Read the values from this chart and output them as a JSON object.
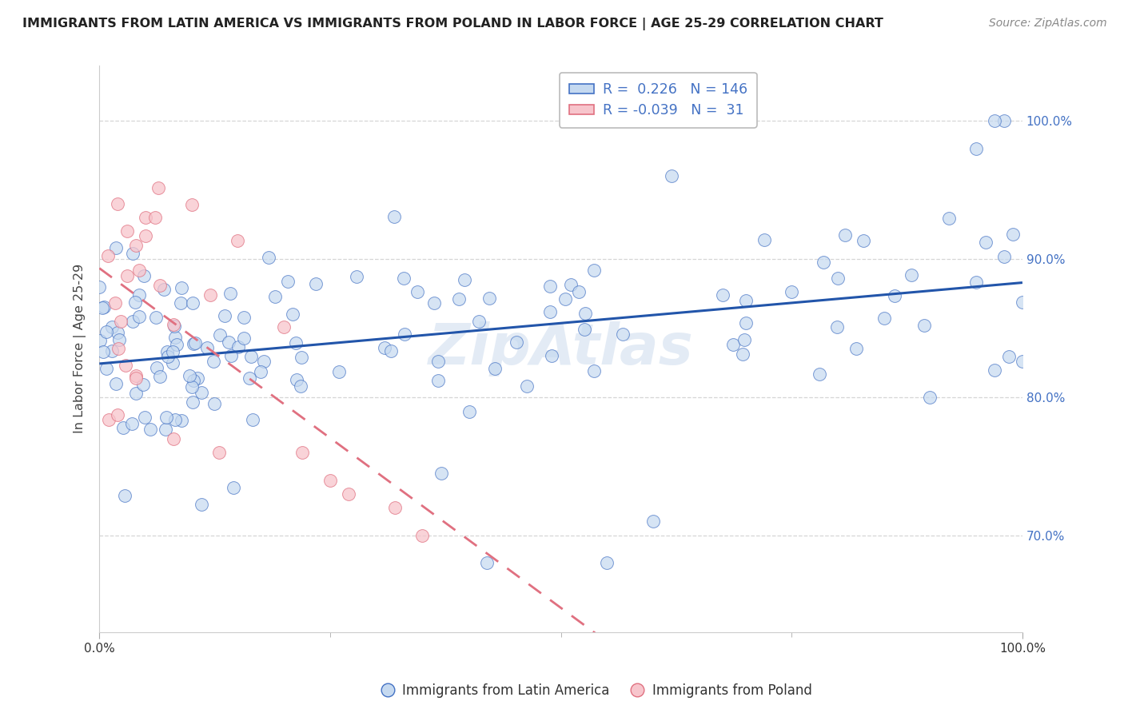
{
  "title": "IMMIGRANTS FROM LATIN AMERICA VS IMMIGRANTS FROM POLAND IN LABOR FORCE | AGE 25-29 CORRELATION CHART",
  "source": "Source: ZipAtlas.com",
  "ylabel": "In Labor Force | Age 25-29",
  "legend_blue_r": "0.226",
  "legend_blue_n": "146",
  "legend_pink_r": "-0.039",
  "legend_pink_n": "31",
  "blue_fill": "#c5d9f0",
  "pink_fill": "#f7c5cc",
  "blue_edge": "#4472c4",
  "pink_edge": "#e07080",
  "blue_line": "#2255aa",
  "pink_line": "#e07080",
  "grid_color": "#cccccc",
  "watermark_color": "#c8d8ec",
  "title_color": "#222222",
  "source_color": "#888888",
  "axis_label_color": "#4472c4",
  "ylabel_color": "#444444"
}
